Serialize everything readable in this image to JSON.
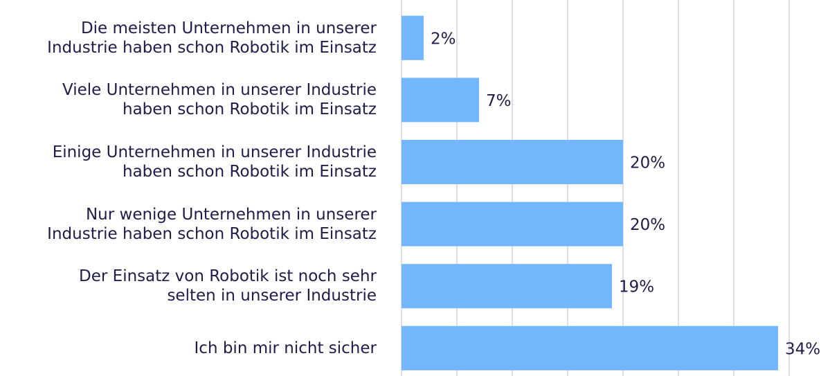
{
  "chart_data": {
    "type": "bar",
    "orientation": "horizontal",
    "categories": [
      "Die meisten Unternehmen in unserer\nIndustrie haben schon Robotik im Einsatz",
      "Viele Unternehmen in unserer Industrie\nhaben schon Robotik im Einsatz",
      "Einige Unternehmen in unserer Industrie\nhaben schon Robotik im Einsatz",
      "Nur wenige Unternehmen in unserer\nIndustrie haben schon Robotik im Einsatz",
      "Der Einsatz von Robotik ist noch sehr\nselten in unserer Industrie",
      "Ich bin mir nicht sicher"
    ],
    "values": [
      2,
      7,
      20,
      20,
      19,
      34
    ],
    "value_labels": [
      "2%",
      "7%",
      "20%",
      "20%",
      "19%",
      "34%"
    ],
    "color": "#74b6fb",
    "xlim": [
      0,
      35
    ],
    "xticks": [
      0,
      5,
      10,
      15,
      20,
      25,
      30,
      35
    ],
    "grid": true
  }
}
